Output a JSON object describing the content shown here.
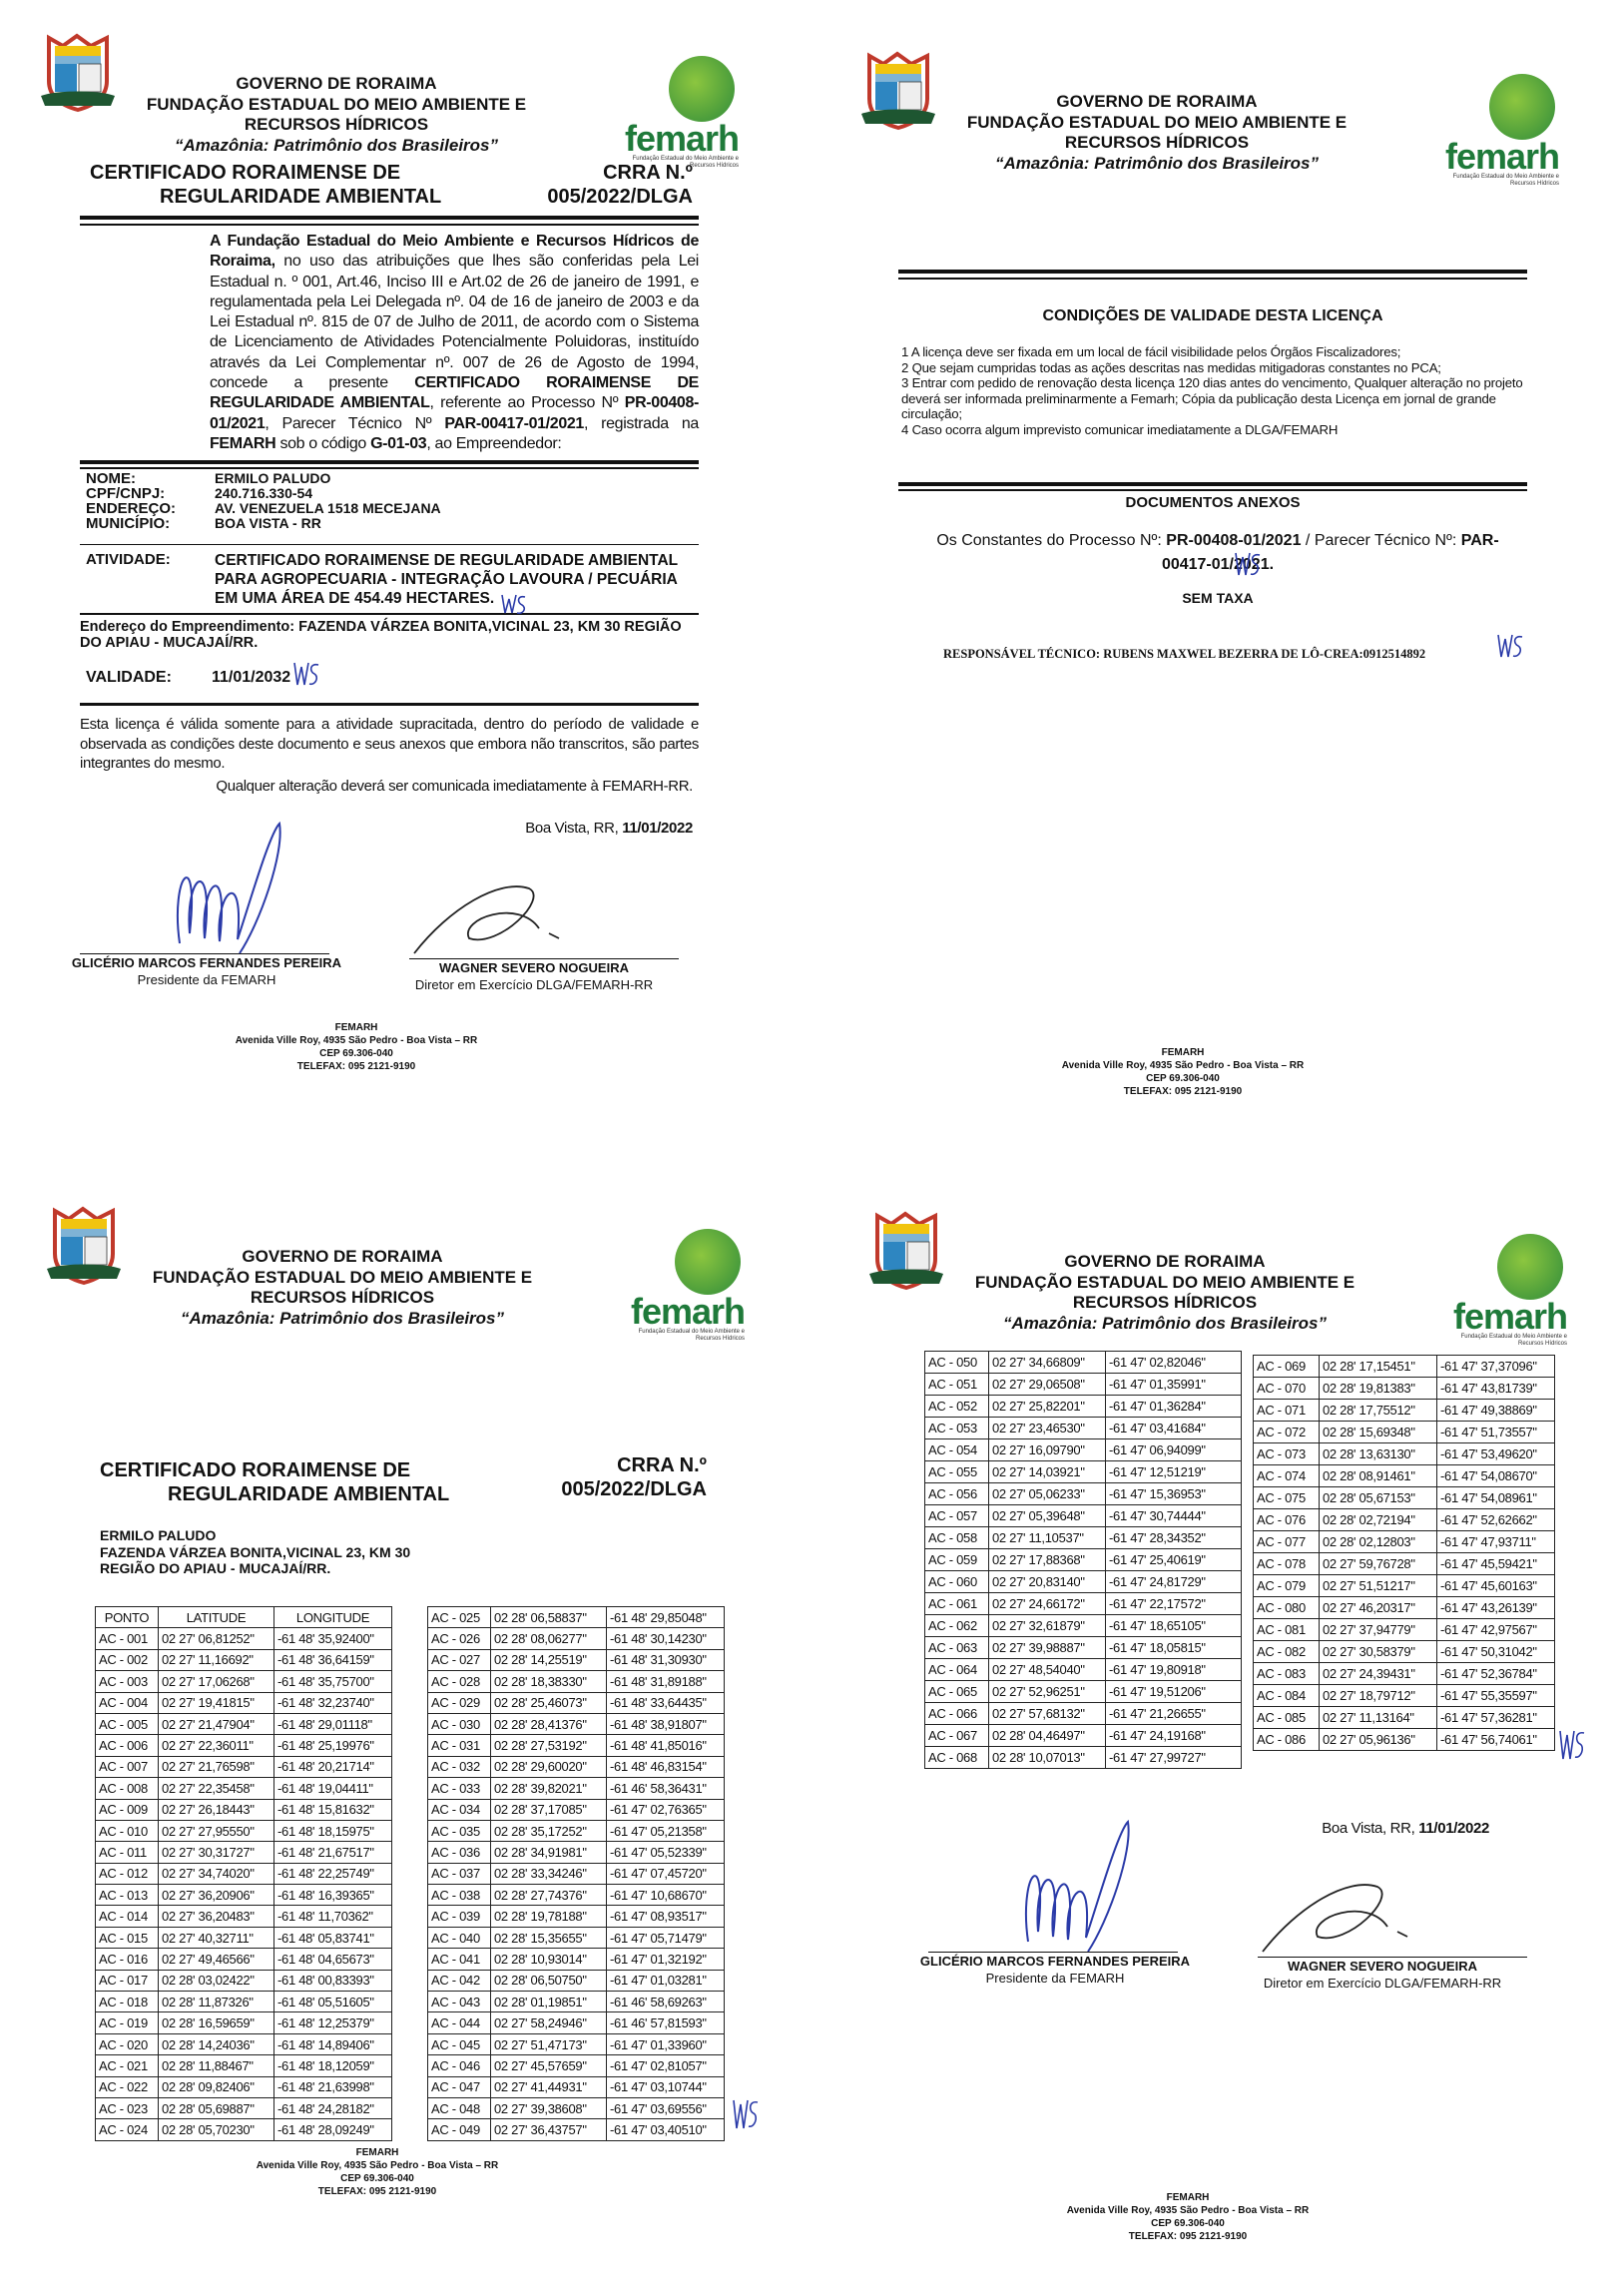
{
  "header": {
    "line1": "GOVERNO DE RORAIMA",
    "line2": "FUNDAÇÃO ESTADUAL DO MEIO AMBIENTE E",
    "line3": "RECURSOS HÍDRICOS",
    "motto": "“Amazônia: Patrimônio dos Brasileiros”",
    "logo_text": "femarh",
    "logo_subtitle": "Fundação Estadual do Meio Ambiente e Recursos Hídricos"
  },
  "footer": {
    "org": "FEMARH",
    "address": "Avenida Ville Roy, 4935 São Pedro - Boa Vista – RR",
    "cep": "CEP 69.306-040",
    "phone": "TELEFAX: 095 2121-9190"
  },
  "certificate": {
    "title_line1": "CERTIFICADO RORAIMENSE DE",
    "title_line2": "REGULARIDADE AMBIENTAL",
    "number_label": "CRRA N.º",
    "number": "005/2022/DLGA"
  },
  "page1": {
    "intro": [
      {
        "t": "A Fundação Estadual do Meio Ambiente e Recursos Hídricos de Roraima,",
        "b": true
      },
      {
        "t": " no uso das atribuições que lhes são conferidas pela Lei Estadual n. º 001, Art.46, Inciso III e Art.02 de 26 de janeiro de 1991, e regulamentada pela Lei Delegada nº. 04 de 16 de janeiro de 2003 e da Lei Estadual nº. 815 de 07 de Julho de 2011, de acordo com o Sistema de Licenciamento de Atividades Potencialmente Poluidoras, instituído através da Lei Complementar nº. 007 de 26 de Agosto de 1994, concede a presente ",
        "b": false
      },
      {
        "t": "CERTIFICADO RORAIMENSE DE REGULARIDADE AMBIENTAL",
        "b": true
      },
      {
        "t": ", referente ao Processo Nº ",
        "b": false
      },
      {
        "t": "PR-00408-01/2021",
        "b": true
      },
      {
        "t": ", Parecer Técnico Nº ",
        "b": false
      },
      {
        "t": "PAR-00417-01/2021",
        "b": true
      },
      {
        "t": ", registrada na ",
        "b": false
      },
      {
        "t": "FEMARH",
        "b": true
      },
      {
        "t": " sob o código ",
        "b": false
      },
      {
        "t": "G-01-03",
        "b": true
      },
      {
        "t": ", ao Empreendedor:",
        "b": false
      }
    ],
    "fields": {
      "nome_label": "NOME:",
      "nome": "ERMILO PALUDO",
      "cpf_label": "CPF/CNPJ:",
      "cpf": "240.716.330-54",
      "endereco_label": "ENDEREÇO:",
      "endereco": "AV. VENEZUELA 1518 MECEJANA",
      "municipio_label": "MUNICÍPIO:",
      "municipio": "BOA VISTA - RR",
      "atividade_label": "ATIVIDADE:",
      "atividade": [
        "CERTIFICADO RORAIMENSE DE REGULARIDADE AMBIENTAL",
        "PARA AGROPECUARIA - INTEGRAÇÃO LAVOURA / PECUÁRIA",
        "EM UMA ÁREA DE  454.49 HECTARES."
      ]
    },
    "empreendimento": "Endereço do Empreendimento: FAZENDA VÁRZEA BONITA,VICINAL 23, KM 30 REGIÃO DO APIAU - MUCAJAÍ/RR.",
    "validade_label": "VALIDADE:",
    "validade": "11/01/2032",
    "validity_note": "Esta licença é válida somente para a atividade supracitada, dentro do período de validade e observada as condições deste documento e seus anexos que embora não transcritos, são partes integrantes do mesmo.",
    "change_note": "Qualquer alteração deverá ser comunicada imediatamente à FEMARH-RR.",
    "place_date_prefix": "Boa Vista, RR, ",
    "place_date": "11/01/2022"
  },
  "signatories": {
    "president_name": "GLICÉRIO MARCOS FERNANDES PEREIRA",
    "president_role": "Presidente da FEMARH",
    "director_name": "WAGNER SEVERO NOGUEIRA",
    "director_role": "Diretor em Exercício DLGA/FEMARH-RR"
  },
  "page2": {
    "conditions_title": "CONDIÇÕES DE VALIDADE DESTA LICENÇA",
    "conditions": [
      "1 A licença deve ser fixada em um local de fácil visibilidade pelos Órgãos Fiscalizadores;",
      "2 Que sejam cumpridas todas as ações descritas nas medidas mitigadoras constantes no PCA;",
      "3 Entrar com pedido de renovação desta licença 120 dias antes do vencimento, Qualquer alteração no projeto deverá ser informada preliminarmente a Femarh; Cópia da publicação desta Licença em jornal de grande circulação;",
      "4 Caso ocorra algum imprevisto comunicar imediatamente a DLGA/FEMARH"
    ],
    "annex_title": "DOCUMENTOS ANEXOS",
    "annex_prefix": "Os Constantes do Processo Nº: ",
    "annex_process": "PR-00408-01/2021",
    "annex_mid": " / Parecer Técnico Nº: ",
    "annex_parecer": "PAR-00417-01/2021.",
    "fee": "SEM TAXA",
    "tech_responsible": "RESPONSÁVEL TÉCNICO: RUBENS MAXWEL  BEZERRA DE LÔ-CREA:0912514892"
  },
  "page3": {
    "owner": "ERMILO PALUDO",
    "location_line1": "FAZENDA VÁRZEA BONITA,VICINAL 23, KM 30",
    "location_line2": "REGIÃO DO APIAU - MUCAJAÍ/RR."
  },
  "coordinates": {
    "headers": [
      "PONTO",
      "LATITUDE",
      "LONGITUDE"
    ],
    "rows": [
      [
        "AC - 001",
        "02 27' 06,81252\"",
        "-61 48' 35,92400\""
      ],
      [
        "AC - 002",
        "02 27' 11,16692\"",
        "-61 48' 36,64159\""
      ],
      [
        "AC - 003",
        "02 27' 17,06268\"",
        "-61 48' 35,75700\""
      ],
      [
        "AC - 004",
        "02 27' 19,41815\"",
        "-61 48' 32,23740\""
      ],
      [
        "AC - 005",
        "02 27' 21,47904\"",
        "-61 48' 29,01118\""
      ],
      [
        "AC - 006",
        "02 27' 22,36011\"",
        "-61 48' 25,19976\""
      ],
      [
        "AC - 007",
        "02 27' 21,76598\"",
        "-61 48' 20,21714\""
      ],
      [
        "AC - 008",
        "02 27' 22,35458\"",
        "-61 48' 19,04411\""
      ],
      [
        "AC - 009",
        "02 27' 26,18443\"",
        "-61 48' 15,81632\""
      ],
      [
        "AC - 010",
        "02 27' 27,95550\"",
        "-61 48' 18,15975\""
      ],
      [
        "AC - 011",
        "02 27' 30,31727\"",
        "-61 48' 21,67517\""
      ],
      [
        "AC - 012",
        "02 27' 34,74020\"",
        "-61 48' 22,25749\""
      ],
      [
        "AC - 013",
        "02 27' 36,20906\"",
        "-61 48' 16,39365\""
      ],
      [
        "AC - 014",
        "02 27' 36,20483\"",
        "-61 48' 11,70362\""
      ],
      [
        "AC - 015",
        "02 27' 40,32711\"",
        "-61 48' 05,83741\""
      ],
      [
        "AC - 016",
        "02 27' 49,46566\"",
        "-61 48' 04,65673\""
      ],
      [
        "AC - 017",
        "02 28' 03,02422\"",
        "-61 48' 00,83393\""
      ],
      [
        "AC - 018",
        "02 28' 11,87326\"",
        "-61 48' 05,51605\""
      ],
      [
        "AC - 019",
        "02 28' 16,59659\"",
        "-61 48' 12,25379\""
      ],
      [
        "AC - 020",
        "02 28' 14,24036\"",
        "-61 48' 14,89406\""
      ],
      [
        "AC - 021",
        "02 28' 11,88467\"",
        "-61 48' 18,12059\""
      ],
      [
        "AC - 022",
        "02 28' 09,82406\"",
        "-61 48' 21,63998\""
      ],
      [
        "AC - 023",
        "02 28' 05,69887\"",
        "-61 48' 24,28182\""
      ],
      [
        "AC - 024",
        "02 28' 05,70230\"",
        "-61 48' 28,09249\""
      ],
      [
        "AC - 025",
        "02 28' 06,58837\"",
        "-61 48' 29,85048\""
      ],
      [
        "AC - 026",
        "02 28' 08,06277\"",
        "-61 48' 30,14230\""
      ],
      [
        "AC - 027",
        "02 28' 14,25519\"",
        "-61 48' 31,30930\""
      ],
      [
        "AC - 028",
        "02 28' 18,38330\"",
        "-61 48' 31,89188\""
      ],
      [
        "AC - 029",
        "02 28' 25,46073\"",
        "-61 48' 33,64435\""
      ],
      [
        "AC - 030",
        "02 28' 28,41376\"",
        "-61 48' 38,91807\""
      ],
      [
        "AC - 031",
        "02 28' 27,53192\"",
        "-61 48' 41,85016\""
      ],
      [
        "AC - 032",
        "02 28' 29,60020\"",
        "-61 48' 46,83154\""
      ],
      [
        "AC - 033",
        "02 28' 39,82021\"",
        "-61 46' 58,36431\""
      ],
      [
        "AC - 034",
        "02 28' 37,17085\"",
        "-61 47' 02,76365\""
      ],
      [
        "AC - 035",
        "02 28' 35,17252\"",
        "-61 47' 05,21358\""
      ],
      [
        "AC - 036",
        "02 28' 34,91981\"",
        "-61 47' 05,52339\""
      ],
      [
        "AC - 037",
        "02 28' 33,34246\"",
        "-61 47' 07,45720\""
      ],
      [
        "AC - 038",
        "02 28' 27,74376\"",
        "-61 47' 10,68670\""
      ],
      [
        "AC - 039",
        "02 28' 19,78188\"",
        "-61 47' 08,93517\""
      ],
      [
        "AC - 040",
        "02 28' 15,35655\"",
        "-61 47' 05,71479\""
      ],
      [
        "AC - 041",
        "02 28' 10,93014\"",
        "-61 47' 01,32192\""
      ],
      [
        "AC - 042",
        "02 28' 06,50750\"",
        "-61 47' 01,03281\""
      ],
      [
        "AC - 043",
        "02 28' 01,19851\"",
        "-61 46' 58,69263\""
      ],
      [
        "AC - 044",
        "02 27' 58,24946\"",
        "-61 46' 57,81593\""
      ],
      [
        "AC - 045",
        "02 27' 51,47173\"",
        "-61 47' 01,33960\""
      ],
      [
        "AC - 046",
        "02 27' 45,57659\"",
        "-61 47' 02,81057\""
      ],
      [
        "AC - 047",
        "02 27' 41,44931\"",
        "-61 47' 03,10744\""
      ],
      [
        "AC - 048",
        "02 27' 39,38608\"",
        "-61 47' 03,69556\""
      ],
      [
        "AC - 049",
        "02 27' 36,43757\"",
        "-61 47' 03,40510\""
      ],
      [
        "AC - 050",
        "02 27' 34,66809\"",
        "-61 47' 02,82046\""
      ],
      [
        "AC - 051",
        "02 27' 29,06508\"",
        "-61 47' 01,35991\""
      ],
      [
        "AC - 052",
        "02 27' 25,82201\"",
        "-61 47' 01,36284\""
      ],
      [
        "AC - 053",
        "02 27' 23,46530\"",
        "-61 47' 03,41684\""
      ],
      [
        "AC - 054",
        "02 27' 16,09790\"",
        "-61 47' 06,94099\""
      ],
      [
        "AC - 055",
        "02 27' 14,03921\"",
        "-61 47' 12,51219\""
      ],
      [
        "AC - 056",
        "02 27' 05,06233\"",
        "-61 47' 15,36953\""
      ],
      [
        "AC - 057",
        "02 27' 05,39648\"",
        "-61 47' 30,74444\""
      ],
      [
        "AC - 058",
        "02 27' 11,10537\"",
        "-61 47' 28,34352\""
      ],
      [
        "AC - 059",
        "02 27' 17,88368\"",
        "-61 47' 25,40619\""
      ],
      [
        "AC - 060",
        "02 27' 20,83140\"",
        "-61 47' 24,81729\""
      ],
      [
        "AC - 061",
        "02 27' 24,66172\"",
        "-61 47' 22,17572\""
      ],
      [
        "AC - 062",
        "02 27' 32,61879\"",
        "-61 47' 18,65105\""
      ],
      [
        "AC - 063",
        "02 27' 39,98887\"",
        "-61 47' 18,05815\""
      ],
      [
        "AC - 064",
        "02 27' 48,54040\"",
        "-61 47' 19,80918\""
      ],
      [
        "AC - 065",
        "02 27' 52,96251\"",
        "-61 47' 19,51206\""
      ],
      [
        "AC - 066",
        "02 27' 57,68132\"",
        "-61 47' 21,26655\""
      ],
      [
        "AC - 067",
        "02 28' 04,46497\"",
        "-61 47' 24,19168\""
      ],
      [
        "AC - 068",
        "02 28' 10,07013\"",
        "-61 47' 27,99727\""
      ],
      [
        "AC - 069",
        "02 28' 17,15451\"",
        "-61 47' 37,37096\""
      ],
      [
        "AC - 070",
        "02 28' 19,81383\"",
        "-61 47' 43,81739\""
      ],
      [
        "AC - 071",
        "02 28' 17,75512\"",
        "-61 47' 49,38869\""
      ],
      [
        "AC - 072",
        "02 28' 15,69348\"",
        "-61 47' 51,73557\""
      ],
      [
        "AC - 073",
        "02 28' 13,63130\"",
        "-61 47' 53,49620\""
      ],
      [
        "AC - 074",
        "02 28' 08,91461\"",
        "-61 47' 54,08670\""
      ],
      [
        "AC - 075",
        "02 28' 05,67153\"",
        "-61 47' 54,08961\""
      ],
      [
        "AC - 076",
        "02 28' 02,72194\"",
        "-61 47' 52,62662\""
      ],
      [
        "AC - 077",
        "02 28' 02,12803\"",
        "-61 47' 47,93711\""
      ],
      [
        "AC - 078",
        "02 27' 59,76728\"",
        "-61 47' 45,59421\""
      ],
      [
        "AC - 079",
        "02 27' 51,51217\"",
        "-61 47' 45,60163\""
      ],
      [
        "AC - 080",
        "02 27' 46,20317\"",
        "-61 47' 43,26139\""
      ],
      [
        "AC - 081",
        "02 27' 37,94779\"",
        "-61 47' 42,97567\""
      ],
      [
        "AC - 082",
        "02 27' 30,58379\"",
        "-61 47' 50,31042\""
      ],
      [
        "AC - 083",
        "02 27' 24,39431\"",
        "-61 47' 52,36784\""
      ],
      [
        "AC - 084",
        "02 27' 18,79712\"",
        "-61 47' 55,35597\""
      ],
      [
        "AC - 085",
        "02 27' 11,13164\"",
        "-61 47' 57,36281\""
      ],
      [
        "AC - 086",
        "02 27' 05,96136\"",
        "-61 47' 56,74061\""
      ]
    ]
  },
  "colors": {
    "ink_blue": "#2a3aa8",
    "logo_green": "#1f7a3a"
  }
}
